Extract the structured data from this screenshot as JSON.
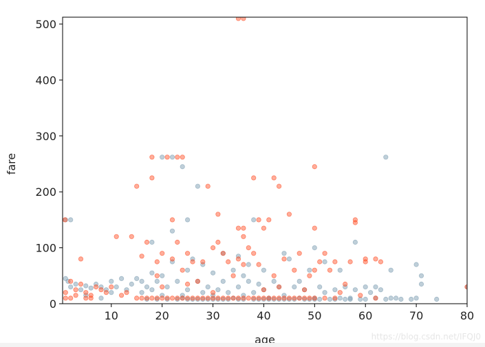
{
  "chart_data": {
    "type": "scatter",
    "xlabel": "age",
    "ylabel": "fare",
    "xlim": [
      0.42,
      80
    ],
    "ylim": [
      0,
      512.3
    ],
    "xticks": [
      10,
      20,
      30,
      40,
      50,
      60,
      70,
      80
    ],
    "yticks": [
      0,
      100,
      200,
      300,
      400,
      500
    ],
    "grid": false,
    "colors": {
      "series_a": "#7f9fb3",
      "series_b": "#ff4a1f"
    },
    "series": [
      {
        "color": "#7f9fb3",
        "points": [
          [
            1,
            45
          ],
          [
            1.5,
            40
          ],
          [
            2,
            30
          ],
          [
            3,
            35
          ],
          [
            4,
            25
          ],
          [
            5,
            32
          ],
          [
            6,
            28
          ],
          [
            7,
            35
          ],
          [
            8,
            30
          ],
          [
            9,
            25
          ],
          [
            10,
            40
          ],
          [
            10,
            20
          ],
          [
            11,
            30
          ],
          [
            12,
            45
          ],
          [
            13,
            25
          ],
          [
            14,
            35
          ],
          [
            15,
            45
          ],
          [
            16,
            20
          ],
          [
            17,
            30
          ],
          [
            18,
            110
          ],
          [
            18,
            25
          ],
          [
            19,
            40
          ],
          [
            20,
            262
          ],
          [
            20,
            50
          ],
          [
            20,
            15
          ],
          [
            21,
            30
          ],
          [
            22,
            262
          ],
          [
            22,
            130
          ],
          [
            22,
            75
          ],
          [
            23,
            40
          ],
          [
            24,
            245
          ],
          [
            24,
            15
          ],
          [
            25,
            150
          ],
          [
            25,
            60
          ],
          [
            25,
            25
          ],
          [
            26,
            80
          ],
          [
            27,
            210
          ],
          [
            27,
            40
          ],
          [
            28,
            70
          ],
          [
            28,
            20
          ],
          [
            29,
            30
          ],
          [
            30,
            15
          ],
          [
            30,
            55
          ],
          [
            31,
            25
          ],
          [
            32,
            90
          ],
          [
            32,
            40
          ],
          [
            33,
            20
          ],
          [
            34,
            60
          ],
          [
            35,
            30
          ],
          [
            35,
            85
          ],
          [
            36,
            50
          ],
          [
            36,
            15
          ],
          [
            37,
            40
          ],
          [
            37,
            70
          ],
          [
            38,
            20
          ],
          [
            38,
            150
          ],
          [
            39,
            35
          ],
          [
            40,
            60
          ],
          [
            40,
            25
          ],
          [
            41,
            10
          ],
          [
            42,
            40
          ],
          [
            43,
            30
          ],
          [
            44,
            90
          ],
          [
            44,
            15
          ],
          [
            45,
            80
          ],
          [
            46,
            30
          ],
          [
            47,
            40
          ],
          [
            47,
            10
          ],
          [
            48,
            25
          ],
          [
            49,
            60
          ],
          [
            50,
            100
          ],
          [
            50,
            10
          ],
          [
            51,
            30
          ],
          [
            52,
            75
          ],
          [
            52,
            20
          ],
          [
            54,
            25
          ],
          [
            55,
            60
          ],
          [
            55,
            10
          ],
          [
            56,
            30
          ],
          [
            57,
            10
          ],
          [
            58,
            110
          ],
          [
            58,
            25
          ],
          [
            60,
            30
          ],
          [
            61,
            20
          ],
          [
            62,
            10
          ],
          [
            63,
            25
          ],
          [
            64,
            262
          ],
          [
            65,
            60
          ],
          [
            65,
            10
          ],
          [
            66,
            10
          ],
          [
            70,
            70
          ],
          [
            70,
            10
          ],
          [
            71,
            50
          ],
          [
            71,
            35
          ],
          [
            74,
            8
          ],
          [
            80,
            30
          ],
          [
            1,
            150
          ],
          [
            2,
            150
          ],
          [
            5,
            15
          ],
          [
            8,
            10
          ],
          [
            16,
            40
          ],
          [
            18,
            55
          ],
          [
            24,
            10
          ],
          [
            26,
            8
          ],
          [
            29,
            8
          ],
          [
            31,
            8
          ],
          [
            33,
            8
          ],
          [
            34,
            10
          ],
          [
            36,
            8
          ],
          [
            39,
            8
          ],
          [
            41,
            8
          ],
          [
            43,
            8
          ],
          [
            45,
            8
          ],
          [
            48,
            8
          ],
          [
            50,
            8
          ],
          [
            53,
            8
          ],
          [
            57,
            8
          ],
          [
            60,
            8
          ],
          [
            62,
            30
          ],
          [
            64,
            8
          ],
          [
            67,
            8
          ],
          [
            69,
            8
          ],
          [
            17,
            8
          ],
          [
            19,
            8
          ],
          [
            21,
            8
          ],
          [
            23,
            8
          ],
          [
            25,
            8
          ],
          [
            27,
            8
          ],
          [
            28,
            8
          ],
          [
            30,
            8
          ],
          [
            32,
            8
          ],
          [
            35,
            8
          ],
          [
            38,
            8
          ],
          [
            40,
            8
          ],
          [
            42,
            8
          ],
          [
            44,
            8
          ],
          [
            46,
            8
          ],
          [
            49,
            8
          ],
          [
            51,
            8
          ],
          [
            54,
            8
          ],
          [
            56,
            8
          ],
          [
            59,
            8
          ]
        ]
      },
      {
        "color": "#ff4a1f",
        "points": [
          [
            0.9,
            150
          ],
          [
            1,
            20
          ],
          [
            2,
            40
          ],
          [
            3,
            25
          ],
          [
            4,
            35
          ],
          [
            4,
            80
          ],
          [
            5,
            20
          ],
          [
            6,
            15
          ],
          [
            7,
            30
          ],
          [
            8,
            25
          ],
          [
            9,
            20
          ],
          [
            10,
            30
          ],
          [
            11,
            120
          ],
          [
            12,
            15
          ],
          [
            13,
            20
          ],
          [
            14,
            120
          ],
          [
            15,
            210
          ],
          [
            16,
            85
          ],
          [
            17,
            110
          ],
          [
            18,
            262
          ],
          [
            18,
            225
          ],
          [
            19,
            75
          ],
          [
            19,
            50
          ],
          [
            20,
            90
          ],
          [
            20,
            30
          ],
          [
            21,
            262
          ],
          [
            22,
            150
          ],
          [
            22,
            80
          ],
          [
            23,
            110
          ],
          [
            23,
            262
          ],
          [
            24,
            262
          ],
          [
            24,
            60
          ],
          [
            25,
            90
          ],
          [
            25,
            35
          ],
          [
            26,
            75
          ],
          [
            27,
            40
          ],
          [
            28,
            75
          ],
          [
            29,
            210
          ],
          [
            30,
            100
          ],
          [
            30,
            20
          ],
          [
            31,
            110
          ],
          [
            31,
            160
          ],
          [
            32,
            90
          ],
          [
            33,
            75
          ],
          [
            34,
            50
          ],
          [
            35,
            135
          ],
          [
            35,
            510
          ],
          [
            35,
            80
          ],
          [
            36,
            510
          ],
          [
            36,
            135
          ],
          [
            36,
            120
          ],
          [
            36,
            70
          ],
          [
            37,
            100
          ],
          [
            38,
            225
          ],
          [
            38,
            90
          ],
          [
            39,
            150
          ],
          [
            39,
            70
          ],
          [
            40,
            135
          ],
          [
            40,
            25
          ],
          [
            41,
            150
          ],
          [
            42,
            225
          ],
          [
            42,
            50
          ],
          [
            43,
            210
          ],
          [
            43,
            30
          ],
          [
            44,
            80
          ],
          [
            45,
            160
          ],
          [
            46,
            60
          ],
          [
            47,
            90
          ],
          [
            48,
            25
          ],
          [
            49,
            50
          ],
          [
            50,
            245
          ],
          [
            50,
            135
          ],
          [
            50,
            60
          ],
          [
            51,
            75
          ],
          [
            52,
            90
          ],
          [
            53,
            60
          ],
          [
            54,
            75
          ],
          [
            55,
            20
          ],
          [
            56,
            35
          ],
          [
            57,
            75
          ],
          [
            58,
            150
          ],
          [
            58,
            145
          ],
          [
            59,
            15
          ],
          [
            60,
            75
          ],
          [
            60,
            80
          ],
          [
            62,
            80
          ],
          [
            63,
            75
          ],
          [
            1,
            10
          ],
          [
            2,
            10
          ],
          [
            3,
            15
          ],
          [
            5,
            10
          ],
          [
            6,
            10
          ],
          [
            15,
            10
          ],
          [
            17,
            10
          ],
          [
            19,
            10
          ],
          [
            21,
            10
          ],
          [
            23,
            10
          ],
          [
            25,
            10
          ],
          [
            26,
            10
          ],
          [
            28,
            10
          ],
          [
            30,
            10
          ],
          [
            32,
            10
          ],
          [
            34,
            10
          ],
          [
            36,
            10
          ],
          [
            38,
            10
          ],
          [
            40,
            10
          ],
          [
            42,
            10
          ],
          [
            44,
            10
          ],
          [
            46,
            10
          ],
          [
            48,
            10
          ],
          [
            50,
            10
          ],
          [
            16,
            10
          ],
          [
            18,
            10
          ],
          [
            20,
            10
          ],
          [
            22,
            10
          ],
          [
            24,
            10
          ],
          [
            27,
            10
          ],
          [
            29,
            10
          ],
          [
            31,
            10
          ],
          [
            33,
            10
          ],
          [
            35,
            10
          ],
          [
            37,
            10
          ],
          [
            39,
            10
          ],
          [
            41,
            10
          ],
          [
            43,
            10
          ],
          [
            45,
            10
          ],
          [
            47,
            10
          ],
          [
            49,
            10
          ],
          [
            52,
            10
          ],
          [
            54,
            10
          ],
          [
            62,
            10
          ],
          [
            80,
            30
          ]
        ]
      }
    ]
  },
  "watermark": "https://blog.csdn.net/IFQJ0"
}
